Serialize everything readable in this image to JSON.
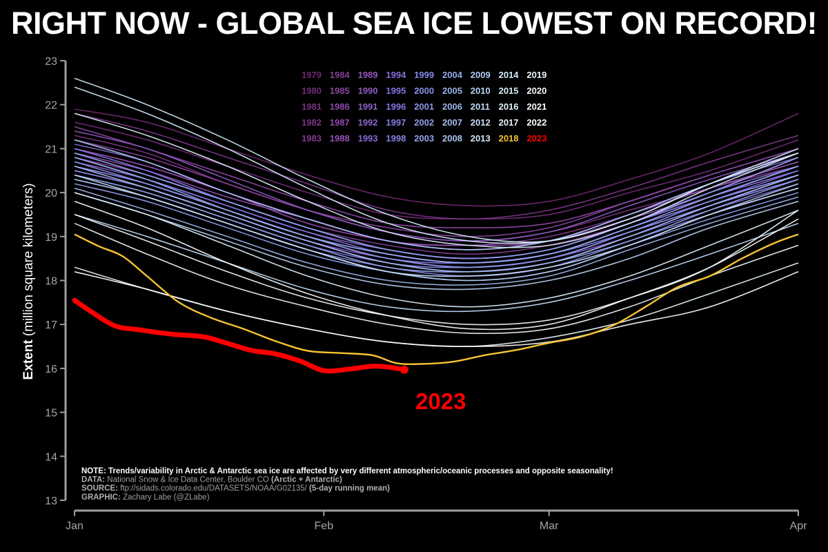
{
  "title": "RIGHT NOW - GLOBAL SEA ICE LOWEST ON RECORD!",
  "colors": {
    "background": "#000000",
    "axis": "#9e9e9e",
    "highlight_2023": "#ff0000",
    "highlight_2018": "#f7c531",
    "recent_years": "#ffffff"
  },
  "chart_data": {
    "type": "line",
    "ylabel_bold": "Extent",
    "ylabel_rest": " (million square kilometers)",
    "ylim": [
      13,
      23
    ],
    "yticks": [
      13,
      14,
      15,
      16,
      17,
      18,
      19,
      20,
      21,
      22,
      23
    ],
    "xlim": [
      1,
      91
    ],
    "xticks": [
      {
        "day": 1,
        "label": "Jan"
      },
      {
        "day": 32,
        "label": "Feb"
      },
      {
        "day": 60,
        "label": "Mar"
      },
      {
        "day": 91,
        "label": "Apr"
      }
    ],
    "grid": false,
    "legend_placement": "top-center",
    "legend_columns": [
      [
        "1979",
        "1980",
        "1981",
        "1982",
        "1983"
      ],
      [
        "1984",
        "1985",
        "1986",
        "1987",
        "1988"
      ],
      [
        "1989",
        "1990",
        "1991",
        "1992",
        "1993"
      ],
      [
        "1994",
        "1995",
        "1996",
        "1997",
        "1998"
      ],
      [
        "1999",
        "2000",
        "2001",
        "2002",
        "2003"
      ],
      [
        "2004",
        "2005",
        "2006",
        "2007",
        "2008"
      ],
      [
        "2009",
        "2010",
        "2011",
        "2012",
        "2013"
      ],
      [
        "2014",
        "2015",
        "2016",
        "2017",
        "2018"
      ],
      [
        "2019",
        "2020",
        "2021",
        "2022",
        "2023"
      ]
    ],
    "legend_colors": {
      "2018": "#f7c531",
      "2023": "#ff0000"
    },
    "label_2023": "2023",
    "series_2023": {
      "name": "2023",
      "x": [
        1,
        3,
        6,
        9,
        13,
        17,
        20,
        23,
        26,
        29,
        32,
        35,
        38,
        40,
        42
      ],
      "y": [
        17.55,
        17.3,
        16.97,
        16.88,
        16.78,
        16.72,
        16.57,
        16.41,
        16.33,
        16.17,
        15.95,
        15.98,
        16.05,
        16.03,
        15.97
      ]
    },
    "series_2018": {
      "name": "2018",
      "x": [
        1,
        4,
        7,
        10,
        14,
        18,
        22,
        26,
        30,
        34,
        38,
        41,
        44,
        48,
        52,
        56,
        60,
        64,
        68,
        72,
        76,
        80,
        84,
        88,
        91
      ],
      "y": [
        19.05,
        18.78,
        18.55,
        18.1,
        17.5,
        17.15,
        16.9,
        16.62,
        16.4,
        16.35,
        16.3,
        16.12,
        16.1,
        16.15,
        16.3,
        16.42,
        16.58,
        16.72,
        16.98,
        17.4,
        17.85,
        18.1,
        18.5,
        18.85,
        19.05
      ]
    },
    "background_series": {
      "shape_x": [
        1,
        10,
        20,
        30,
        40,
        50,
        60,
        70,
        80,
        91
      ],
      "years": [
        {
          "year": 1979,
          "y": [
            21.9,
            21.6,
            21.0,
            20.4,
            19.9,
            19.7,
            19.8,
            20.3,
            20.9,
            21.8
          ]
        },
        {
          "year": 1980,
          "y": [
            21.6,
            21.2,
            20.6,
            20.0,
            19.5,
            19.4,
            19.5,
            20.0,
            20.5,
            21.2
          ]
        },
        {
          "year": 1981,
          "y": [
            21.3,
            20.9,
            20.2,
            19.6,
            19.1,
            18.9,
            19.1,
            19.6,
            20.1,
            20.7
          ]
        },
        {
          "year": 1982,
          "y": [
            21.8,
            21.4,
            20.8,
            20.2,
            19.6,
            19.4,
            19.6,
            20.1,
            20.7,
            21.3
          ]
        },
        {
          "year": 1983,
          "y": [
            21.0,
            20.6,
            20.0,
            19.4,
            18.9,
            18.8,
            19.0,
            19.5,
            20.1,
            20.6
          ]
        },
        {
          "year": 1984,
          "y": [
            20.8,
            20.4,
            19.8,
            19.2,
            18.8,
            18.6,
            18.8,
            19.3,
            19.9,
            20.5
          ]
        },
        {
          "year": 1985,
          "y": [
            21.2,
            20.8,
            20.2,
            19.6,
            19.2,
            19.0,
            19.2,
            19.8,
            20.4,
            21.0
          ]
        },
        {
          "year": 1986,
          "y": [
            21.5,
            21.0,
            20.4,
            19.8,
            19.3,
            19.2,
            19.3,
            19.8,
            20.4,
            21.0
          ]
        },
        {
          "year": 1987,
          "y": [
            21.0,
            20.6,
            20.0,
            19.3,
            18.9,
            18.7,
            18.9,
            19.4,
            20.0,
            20.8
          ]
        },
        {
          "year": 1988,
          "y": [
            20.9,
            20.5,
            19.9,
            19.4,
            18.9,
            18.8,
            18.9,
            19.5,
            20.1,
            20.7
          ]
        },
        {
          "year": 1989,
          "y": [
            20.6,
            20.2,
            19.6,
            19.0,
            18.6,
            18.4,
            18.6,
            19.2,
            19.8,
            20.4
          ]
        },
        {
          "year": 1990,
          "y": [
            21.4,
            21.0,
            20.3,
            19.6,
            19.1,
            18.9,
            19.1,
            19.7,
            20.3,
            20.9
          ]
        },
        {
          "year": 1991,
          "y": [
            20.5,
            20.1,
            19.5,
            18.9,
            18.5,
            18.3,
            18.5,
            19.0,
            19.7,
            20.3
          ]
        },
        {
          "year": 1992,
          "y": [
            20.7,
            20.3,
            19.7,
            19.1,
            18.7,
            18.5,
            18.7,
            19.3,
            19.9,
            20.6
          ]
        },
        {
          "year": 1993,
          "y": [
            21.1,
            20.7,
            20.0,
            19.4,
            18.9,
            18.7,
            18.9,
            19.5,
            20.2,
            20.8
          ]
        },
        {
          "year": 1994,
          "y": [
            20.9,
            20.4,
            19.8,
            19.2,
            18.7,
            18.5,
            18.7,
            19.3,
            19.9,
            20.5
          ]
        },
        {
          "year": 1995,
          "y": [
            20.4,
            20.0,
            19.4,
            18.8,
            18.4,
            18.2,
            18.4,
            19.0,
            19.6,
            20.2
          ]
        },
        {
          "year": 1996,
          "y": [
            20.8,
            20.3,
            19.7,
            19.1,
            18.6,
            18.4,
            18.6,
            19.2,
            19.8,
            20.5
          ]
        },
        {
          "year": 1997,
          "y": [
            21.0,
            20.5,
            19.8,
            19.2,
            18.7,
            18.5,
            18.7,
            19.3,
            20.0,
            20.6
          ]
        },
        {
          "year": 1998,
          "y": [
            20.6,
            20.2,
            19.6,
            19.0,
            18.5,
            18.4,
            18.6,
            19.1,
            19.7,
            20.3
          ]
        },
        {
          "year": 1999,
          "y": [
            20.3,
            19.9,
            19.3,
            18.7,
            18.3,
            18.1,
            18.3,
            18.9,
            19.5,
            20.1
          ]
        },
        {
          "year": 2000,
          "y": [
            20.5,
            20.1,
            19.5,
            18.9,
            18.4,
            18.3,
            18.5,
            19.1,
            19.7,
            20.4
          ]
        },
        {
          "year": 2001,
          "y": [
            20.7,
            20.2,
            19.6,
            19.0,
            18.5,
            18.3,
            18.5,
            19.1,
            19.8,
            20.4
          ]
        },
        {
          "year": 2002,
          "y": [
            20.2,
            19.8,
            19.2,
            18.6,
            18.2,
            18.0,
            18.2,
            18.8,
            19.4,
            20.0
          ]
        },
        {
          "year": 2003,
          "y": [
            20.9,
            20.4,
            19.8,
            19.2,
            18.7,
            18.5,
            18.7,
            19.3,
            20.0,
            20.8
          ]
        },
        {
          "year": 2004,
          "y": [
            20.4,
            20.0,
            19.4,
            18.8,
            18.3,
            18.2,
            18.4,
            18.9,
            19.6,
            20.3
          ]
        },
        {
          "year": 2005,
          "y": [
            20.8,
            20.3,
            19.6,
            19.0,
            18.6,
            18.4,
            18.6,
            19.2,
            19.9,
            20.6
          ]
        },
        {
          "year": 2006,
          "y": [
            20.1,
            19.6,
            19.0,
            18.4,
            18.0,
            17.9,
            18.1,
            18.7,
            19.3,
            19.9
          ]
        },
        {
          "year": 2007,
          "y": [
            20.6,
            20.1,
            19.5,
            18.9,
            18.4,
            18.2,
            18.4,
            19.0,
            19.7,
            20.4
          ]
        },
        {
          "year": 2008,
          "y": [
            21.2,
            20.7,
            20.0,
            19.4,
            18.9,
            18.7,
            18.9,
            19.5,
            20.2,
            20.9
          ]
        },
        {
          "year": 2009,
          "y": [
            20.3,
            19.9,
            19.3,
            18.7,
            18.2,
            18.0,
            18.2,
            18.8,
            19.5,
            20.2
          ]
        },
        {
          "year": 2010,
          "y": [
            20.0,
            19.5,
            18.9,
            18.3,
            17.9,
            17.8,
            18.0,
            18.5,
            19.2,
            19.8
          ]
        },
        {
          "year": 2011,
          "y": [
            19.5,
            19.0,
            18.4,
            17.8,
            17.4,
            17.3,
            17.5,
            18.0,
            18.6,
            19.3
          ]
        },
        {
          "year": 2012,
          "y": [
            20.4,
            19.9,
            19.3,
            18.7,
            18.2,
            18.1,
            18.3,
            18.8,
            19.5,
            20.1
          ]
        },
        {
          "year": 2013,
          "y": [
            22.6,
            22.0,
            21.2,
            20.3,
            19.5,
            19.0,
            18.9,
            19.4,
            20.2,
            20.9
          ]
        },
        {
          "year": 2014,
          "y": [
            22.4,
            21.8,
            21.0,
            20.1,
            19.3,
            18.9,
            18.9,
            19.4,
            20.2,
            21.0
          ]
        },
        {
          "year": 2015,
          "y": [
            21.8,
            21.3,
            20.6,
            19.8,
            19.1,
            18.8,
            18.8,
            19.3,
            20.1,
            20.9
          ]
        },
        {
          "year": 2016,
          "y": [
            20.0,
            19.5,
            18.8,
            18.1,
            17.6,
            17.4,
            17.6,
            18.1,
            18.8,
            19.6
          ]
        },
        {
          "year": 2017,
          "y": [
            18.3,
            17.8,
            17.3,
            16.9,
            16.6,
            16.5,
            16.7,
            17.1,
            17.7,
            18.4
          ]
        },
        {
          "year": 2019,
          "y": [
            19.3,
            18.6,
            17.9,
            17.4,
            17.0,
            16.8,
            16.9,
            17.4,
            18.1,
            18.8
          ]
        },
        {
          "year": 2020,
          "y": [
            19.5,
            18.9,
            18.2,
            17.6,
            17.2,
            17.0,
            17.1,
            17.6,
            18.3,
            19.6
          ]
        },
        {
          "year": 2021,
          "y": [
            19.8,
            19.2,
            18.4,
            17.7,
            17.2,
            16.9,
            17.0,
            17.6,
            18.3,
            19.4
          ]
        },
        {
          "year": 2022,
          "y": [
            18.2,
            17.8,
            17.3,
            16.9,
            16.6,
            16.5,
            16.6,
            17.0,
            17.4,
            18.2
          ]
        }
      ]
    },
    "notes": [
      {
        "bold": "NOTE: Trends/variability in Arctic & Antarctic sea ice are affected by very different atmospheric/oceanic processes and opposite seasonality!",
        "rest": "",
        "bold2": ""
      },
      {
        "bold": "DATA:",
        "rest": " National Snow & Ice Data Center, Boulder CO ",
        "bold2": "(Arctic + Antarctic)"
      },
      {
        "bold": "SOURCE:",
        "rest": " ftp://sidads.colorado.edu/DATASETS/NOAA/G02135/ ",
        "bold2": "(5-day running mean)"
      },
      {
        "bold": "GRAPHIC:",
        "rest": " Zachary Labe (@ZLabe)",
        "bold2": ""
      }
    ]
  }
}
